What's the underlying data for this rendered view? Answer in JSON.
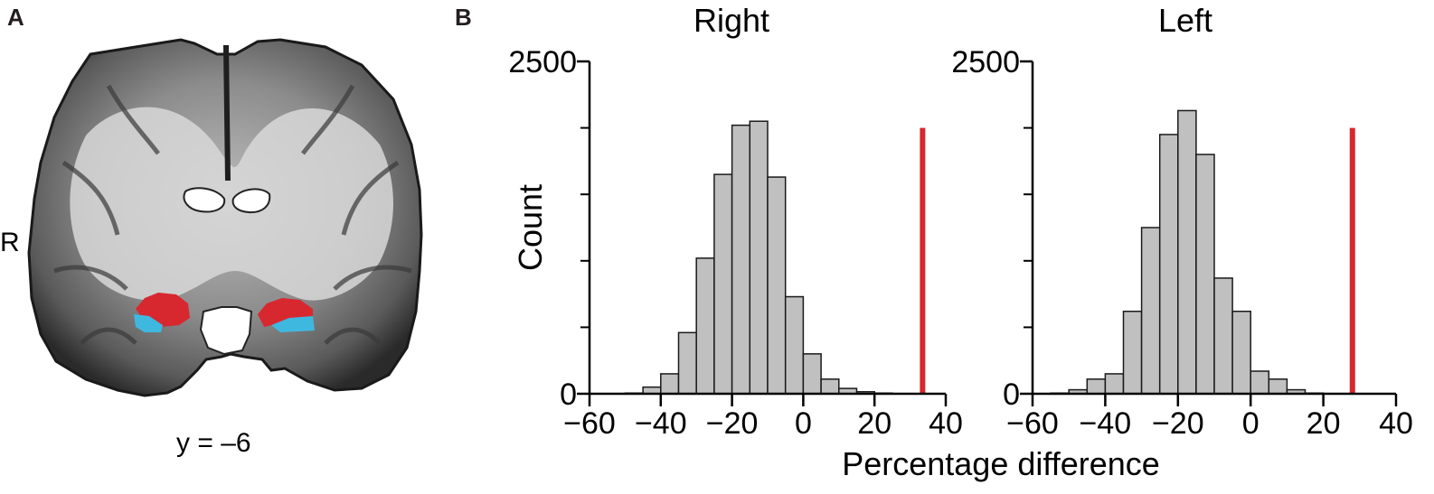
{
  "panel_a": {
    "letter": "A",
    "side_label": "R",
    "slice_label": "y = –6",
    "colors": {
      "red_region": "#d7282f",
      "blue_region": "#3fb8e0"
    }
  },
  "panel_b": {
    "letter": "B"
  },
  "chart_data": [
    {
      "type": "bar",
      "title": "Right",
      "xlabel": "Percentage difference",
      "ylabel": "Count",
      "xlim": [
        -60,
        40
      ],
      "ylim": [
        0,
        2500
      ],
      "x_ticks": [
        -60,
        -40,
        -20,
        0,
        20,
        40
      ],
      "x_tick_labels": [
        "−60",
        "−40",
        "−20",
        "0",
        "20",
        "40"
      ],
      "y_tick_labels": [
        "0",
        "2500"
      ],
      "y_minor_ticks": [
        500,
        1000,
        1500,
        2000
      ],
      "bin_width": 5,
      "bin_starts": [
        -60,
        -55,
        -50,
        -45,
        -40,
        -35,
        -30,
        -25,
        -20,
        -15,
        -10,
        -5,
        0,
        5,
        10,
        15,
        20,
        25,
        30
      ],
      "counts": [
        0,
        0,
        5,
        50,
        150,
        460,
        1020,
        1650,
        2020,
        2050,
        1630,
        730,
        300,
        110,
        40,
        15,
        5,
        0,
        0
      ],
      "observed_value": 33.5,
      "observed_color": "#d7282f",
      "bar_color": "#c0c0c0"
    },
    {
      "type": "bar",
      "title": "Left",
      "xlabel": "Percentage difference",
      "ylabel": "Count",
      "xlim": [
        -60,
        40
      ],
      "ylim": [
        0,
        2500
      ],
      "x_ticks": [
        -60,
        -40,
        -20,
        0,
        20,
        40
      ],
      "x_tick_labels": [
        "−60",
        "−40",
        "−20",
        "0",
        "20",
        "40"
      ],
      "y_tick_labels": [
        "0",
        "2500"
      ],
      "y_minor_ticks": [
        500,
        1000,
        1500,
        2000
      ],
      "bin_width": 5,
      "bin_starts": [
        -60,
        -55,
        -50,
        -45,
        -40,
        -35,
        -30,
        -25,
        -20,
        -15,
        -10,
        -5,
        0,
        5,
        10,
        15,
        20,
        25,
        30
      ],
      "counts": [
        0,
        5,
        30,
        110,
        150,
        620,
        1250,
        1950,
        2130,
        1800,
        870,
        620,
        170,
        110,
        30,
        5,
        0,
        0,
        0
      ],
      "observed_value": 28,
      "observed_color": "#d7282f",
      "bar_color": "#c0c0c0"
    }
  ]
}
